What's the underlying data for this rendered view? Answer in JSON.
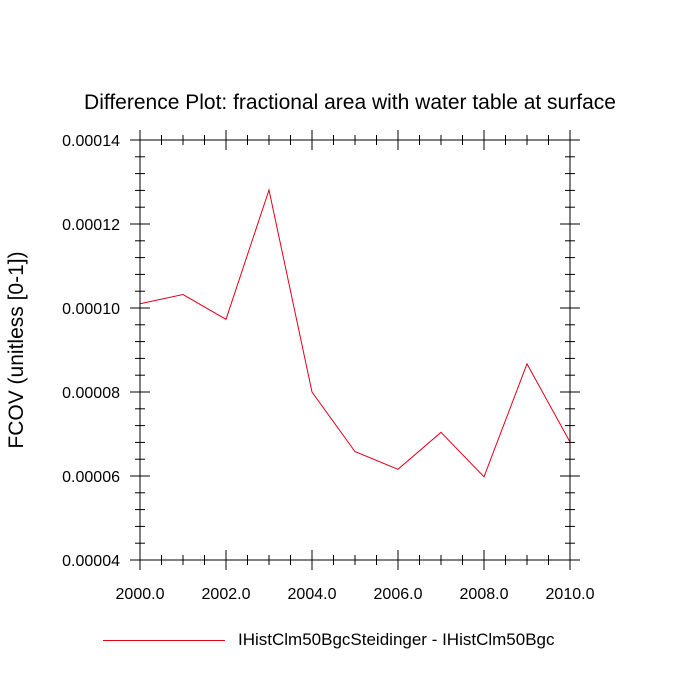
{
  "chart_data": {
    "type": "line",
    "title": "Difference Plot: fractional area with water table at surface",
    "xlabel": "",
    "ylabel": "FCOV  (unitless [0-1])",
    "xlim": [
      2000,
      2010
    ],
    "ylim": [
      4e-05,
      0.00014
    ],
    "x_ticks": [
      "2000.0",
      "2002.0",
      "2004.0",
      "2006.0",
      "2008.0",
      "2010.0"
    ],
    "x_tick_values": [
      2000,
      2002,
      2004,
      2006,
      2008,
      2010
    ],
    "y_ticks": [
      "0.00004",
      "0.00006",
      "0.00008",
      "0.00010",
      "0.00012",
      "0.00014"
    ],
    "y_tick_values": [
      4e-05,
      6e-05,
      8e-05,
      0.0001,
      0.00012,
      0.00014
    ],
    "x": [
      2000,
      2001,
      2002,
      2003,
      2004,
      2005,
      2006,
      2007,
      2008,
      2009,
      2010
    ],
    "series": [
      {
        "name": "IHistClm50BgcSteidinger - IHistClm50Bgc",
        "color": "#e0001a",
        "values": [
          0.000101,
          0.0001032,
          9.73e-05,
          0.0001281,
          8e-05,
          6.58e-05,
          6.16e-05,
          7.04e-05,
          5.98e-05,
          8.67e-05,
          6.81e-05
        ]
      }
    ],
    "grid": false,
    "legend_position": "bottom"
  }
}
